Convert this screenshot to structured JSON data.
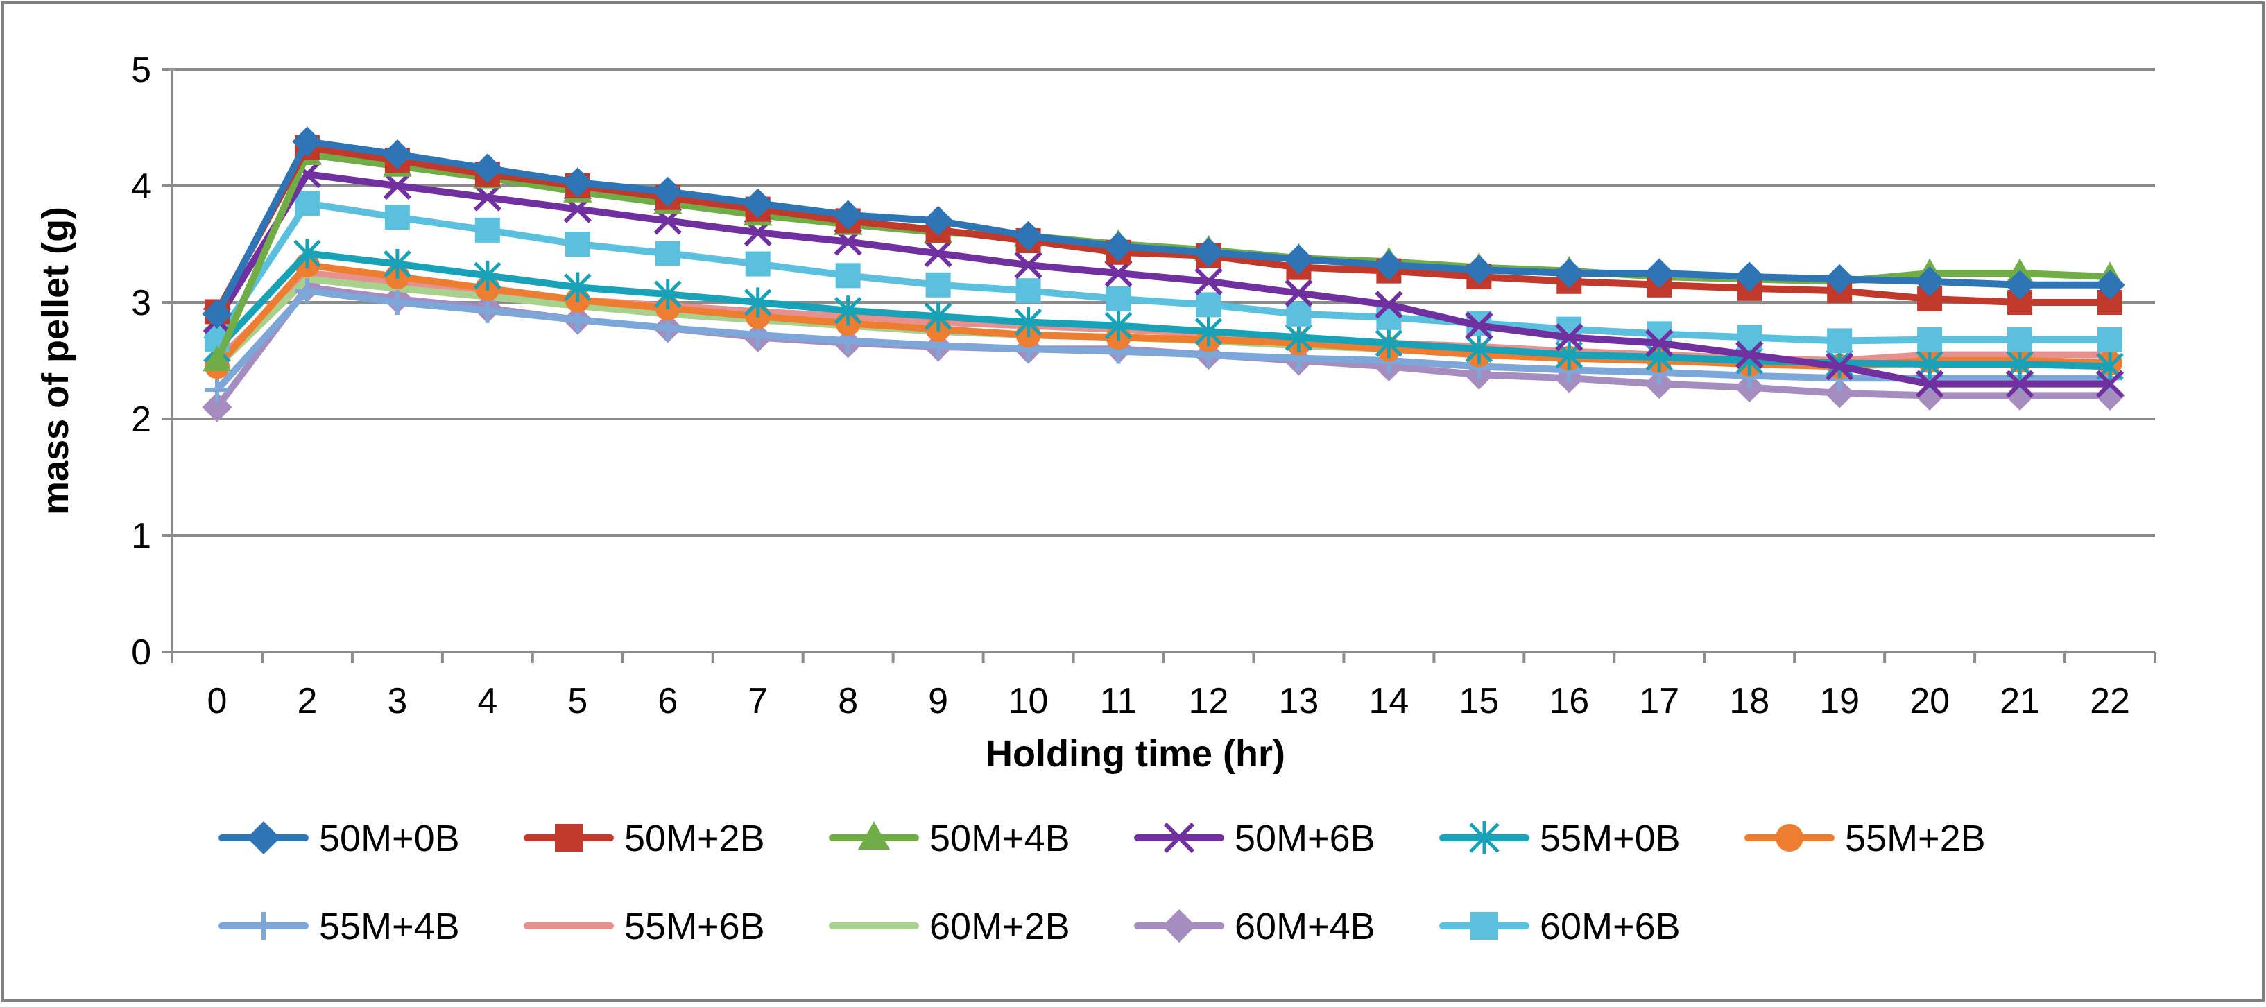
{
  "chart_data": {
    "type": "line",
    "title": "",
    "xlabel": "Holding time (hr)",
    "ylabel": "mass of pellet (g)",
    "ylim": [
      0,
      5
    ],
    "yticks": [
      0,
      1,
      2,
      3,
      4,
      5
    ],
    "categories": [
      "0",
      "2",
      "3",
      "4",
      "5",
      "6",
      "7",
      "8",
      "9",
      "10",
      "11",
      "12",
      "13",
      "14",
      "15",
      "16",
      "17",
      "18",
      "19",
      "20",
      "21",
      "22"
    ],
    "grid": "horizontal",
    "legend_position": "bottom",
    "series": [
      {
        "name": "50M+0B",
        "color": "#2E75B6",
        "marker": "diamond",
        "values": [
          2.9,
          4.38,
          4.27,
          4.15,
          4.03,
          3.95,
          3.85,
          3.75,
          3.7,
          3.57,
          3.48,
          3.43,
          3.37,
          3.32,
          3.28,
          3.25,
          3.25,
          3.22,
          3.2,
          3.18,
          3.15,
          3.15
        ]
      },
      {
        "name": "50M+2B",
        "color": "#C0392B",
        "marker": "square",
        "values": [
          2.92,
          4.33,
          4.22,
          4.1,
          4.0,
          3.9,
          3.8,
          3.7,
          3.62,
          3.53,
          3.43,
          3.4,
          3.3,
          3.27,
          3.22,
          3.18,
          3.15,
          3.12,
          3.1,
          3.03,
          3.0,
          3.0
        ]
      },
      {
        "name": "50M+4B",
        "color": "#70AD47",
        "marker": "triangle",
        "values": [
          2.5,
          4.27,
          4.17,
          4.07,
          3.95,
          3.85,
          3.75,
          3.67,
          3.6,
          3.57,
          3.5,
          3.45,
          3.38,
          3.35,
          3.3,
          3.27,
          3.22,
          3.2,
          3.18,
          3.25,
          3.25,
          3.22
        ]
      },
      {
        "name": "50M+6B",
        "color": "#7030A0",
        "marker": "x",
        "values": [
          2.85,
          4.1,
          4.0,
          3.9,
          3.8,
          3.7,
          3.6,
          3.52,
          3.42,
          3.32,
          3.25,
          3.18,
          3.08,
          2.98,
          2.8,
          2.7,
          2.65,
          2.55,
          2.45,
          2.3,
          2.3,
          2.3
        ]
      },
      {
        "name": "55M+0B",
        "color": "#17A2B8",
        "marker": "asterisk",
        "values": [
          2.6,
          3.42,
          3.33,
          3.23,
          3.13,
          3.07,
          3.0,
          2.93,
          2.88,
          2.83,
          2.8,
          2.75,
          2.7,
          2.65,
          2.6,
          2.55,
          2.53,
          2.5,
          2.48,
          2.47,
          2.47,
          2.45
        ]
      },
      {
        "name": "55M+2B",
        "color": "#ED7D31",
        "marker": "circle",
        "values": [
          2.45,
          3.32,
          3.22,
          3.12,
          3.02,
          2.95,
          2.88,
          2.82,
          2.77,
          2.72,
          2.7,
          2.68,
          2.65,
          2.6,
          2.55,
          2.52,
          2.5,
          2.47,
          2.45,
          2.5,
          2.5,
          2.48
        ]
      },
      {
        "name": "55M+4B",
        "color": "#7CA7D8",
        "marker": "plus",
        "values": [
          2.25,
          3.1,
          3.0,
          2.93,
          2.85,
          2.78,
          2.72,
          2.67,
          2.63,
          2.6,
          2.58,
          2.55,
          2.52,
          2.5,
          2.45,
          2.42,
          2.4,
          2.37,
          2.35,
          2.35,
          2.35,
          2.35
        ]
      },
      {
        "name": "55M+6B",
        "color": "#E6918F",
        "marker": "none",
        "values": [
          2.5,
          3.25,
          3.18,
          3.1,
          3.02,
          2.97,
          2.92,
          2.88,
          2.83,
          2.8,
          2.77,
          2.73,
          2.7,
          2.65,
          2.62,
          2.58,
          2.55,
          2.52,
          2.5,
          2.55,
          2.55,
          2.55
        ]
      },
      {
        "name": "60M+2B",
        "color": "#A9D18E",
        "marker": "none",
        "values": [
          2.45,
          3.2,
          3.12,
          3.05,
          2.97,
          2.9,
          2.85,
          2.8,
          2.75,
          2.72,
          2.7,
          2.67,
          2.63,
          2.6,
          2.57,
          2.53,
          2.5,
          2.48,
          2.45,
          2.48,
          2.48,
          2.45
        ]
      },
      {
        "name": "60M+4B",
        "color": "#A68DC0",
        "marker": "diamond",
        "values": [
          2.1,
          3.13,
          3.03,
          2.95,
          2.85,
          2.78,
          2.7,
          2.65,
          2.62,
          2.6,
          2.6,
          2.55,
          2.5,
          2.45,
          2.38,
          2.35,
          2.3,
          2.27,
          2.22,
          2.2,
          2.2,
          2.2
        ]
      },
      {
        "name": "60M+6B",
        "color": "#5BC0DE",
        "marker": "square",
        "values": [
          2.68,
          3.85,
          3.73,
          3.62,
          3.5,
          3.42,
          3.33,
          3.23,
          3.15,
          3.1,
          3.03,
          2.98,
          2.9,
          2.87,
          2.82,
          2.77,
          2.73,
          2.7,
          2.67,
          2.68,
          2.68,
          2.68
        ]
      }
    ]
  }
}
